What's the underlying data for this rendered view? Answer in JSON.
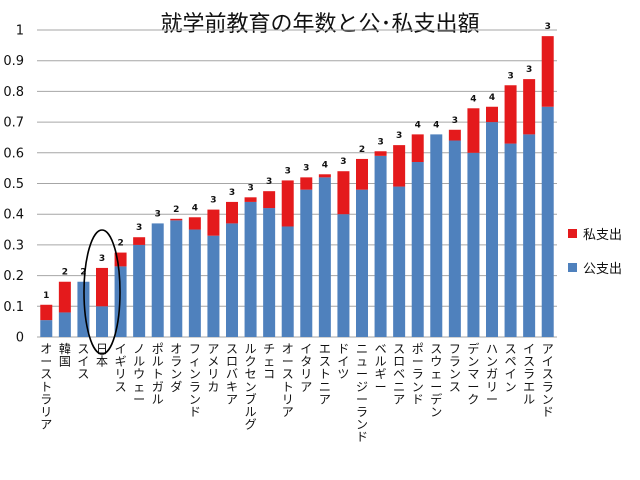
{
  "chart_data": {
    "type": "bar",
    "stacked": true,
    "title": "就学前教育の年数と公･私支出額",
    "xlabel": "",
    "ylabel": "",
    "ylim": [
      0,
      1
    ],
    "yticks": [
      "0",
      "0.1",
      "0.2",
      "0.3",
      "0.4",
      "0.5",
      "0.6",
      "0.7",
      "0.8",
      "0.9",
      "1"
    ],
    "grid": true,
    "legend_position": "right",
    "categories": [
      "オーストラリア",
      "韓国",
      "スイス",
      "日本",
      "イギリス",
      "ノルウェー",
      "ポルトガル",
      "オランダ",
      "フィンランド",
      "アメリカ",
      "スロバキア",
      "ルクセンブルグ",
      "チェコ",
      "オーストリア",
      "イタリア",
      "エストニア",
      "ドイツ",
      "ニュージーランド",
      "ベルギー",
      "スロベニア",
      "ポーランド",
      "スウェーデン",
      "フランス",
      "デンマーク",
      "ハンガリー",
      "スペイン",
      "イスラエル",
      "アイスランド"
    ],
    "years": [
      "1",
      "2",
      "2",
      "3",
      "2",
      "3",
      "3",
      "2",
      "4",
      "3",
      "3",
      "3",
      "3",
      "3",
      "3",
      "4",
      "3",
      "2",
      "3",
      "3",
      "4",
      "4",
      "3",
      "4",
      "4",
      "3",
      "3",
      "3"
    ],
    "series": [
      {
        "name": "公支出",
        "color": "#4F81BD",
        "values": [
          0.055,
          0.08,
          0.18,
          0.1,
          0.23,
          0.3,
          0.37,
          0.38,
          0.35,
          0.33,
          0.37,
          0.44,
          0.42,
          0.36,
          0.48,
          0.52,
          0.4,
          0.48,
          0.59,
          0.49,
          0.57,
          0.66,
          0.64,
          0.6,
          0.7,
          0.63,
          0.66,
          0.75
        ]
      },
      {
        "name": "私支出",
        "color": "#E41A1C",
        "values": [
          0.05,
          0.1,
          0.0,
          0.125,
          0.045,
          0.025,
          0.0,
          0.005,
          0.04,
          0.085,
          0.07,
          0.015,
          0.055,
          0.15,
          0.04,
          0.01,
          0.14,
          0.1,
          0.015,
          0.135,
          0.09,
          0.0,
          0.035,
          0.145,
          0.05,
          0.19,
          0.18,
          0.23
        ]
      }
    ],
    "annotations": [
      {
        "text": "ellipse around 日本"
      }
    ]
  }
}
